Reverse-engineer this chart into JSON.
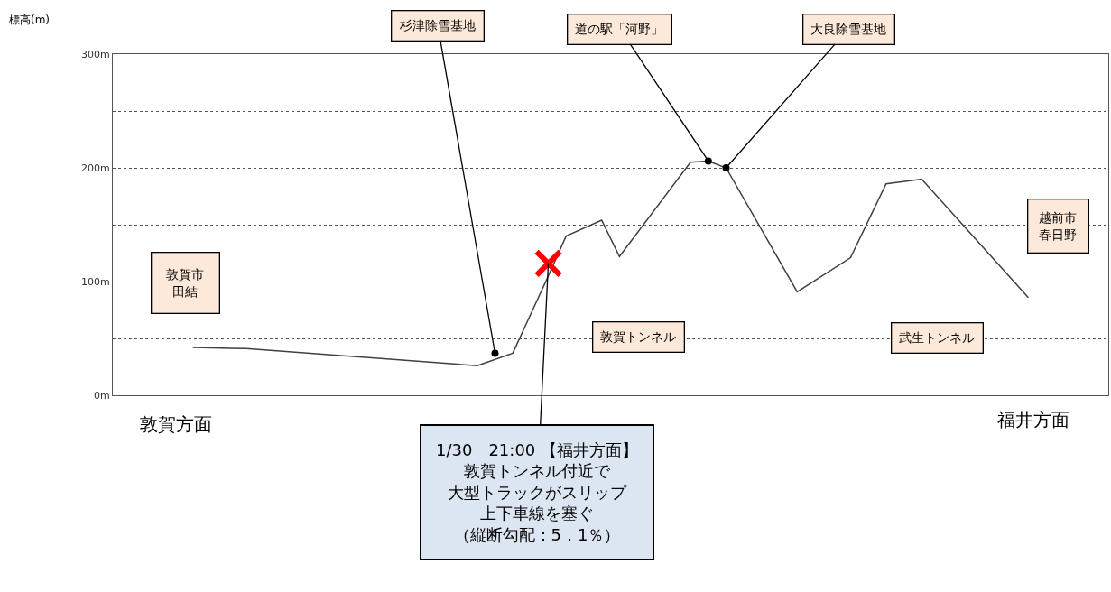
{
  "chart_data": {
    "type": "line",
    "ylabel": "標高(m)",
    "categories": [
      null,
      null,
      null,
      null,
      null,
      null,
      null,
      null,
      null,
      null,
      null,
      null,
      null,
      null,
      null,
      null,
      null,
      null,
      null,
      null,
      null,
      null,
      null,
      null,
      null,
      null,
      null,
      null,
      null,
      null,
      null,
      null,
      null,
      null,
      null,
      null,
      null,
      null,
      null,
      null,
      null,
      null,
      null,
      null,
      null,
      null,
      null,
      null,
      null,
      null,
      null,
      null,
      null,
      null,
      null,
      null
    ],
    "series": [
      {
        "color": "#404040",
        "values": [
          null,
          null,
          null,
          null,
          42,
          null,
          null,
          41,
          null,
          null,
          null,
          null,
          null,
          null,
          null,
          null,
          null,
          null,
          null,
          null,
          26,
          null,
          37,
          null,
          105,
          140,
          null,
          154,
          122,
          null,
          null,
          null,
          205,
          206,
          200,
          null,
          null,
          null,
          91,
          null,
          null,
          121,
          null,
          186,
          null,
          190,
          null,
          null,
          null,
          null,
          null,
          86,
          null,
          null,
          null,
          null
        ]
      },
      {
        "type": "scatter",
        "marker": "circle",
        "color": "#000000",
        "values": [
          null,
          null,
          null,
          null,
          null,
          null,
          null,
          null,
          null,
          null,
          null,
          null,
          null,
          null,
          null,
          null,
          null,
          null,
          null,
          null,
          null,
          37,
          null,
          null,
          null,
          null,
          null,
          null,
          null,
          null,
          null,
          null,
          null,
          206,
          200,
          null,
          null,
          null,
          null,
          null,
          null,
          null,
          null,
          null,
          null,
          null,
          null,
          null,
          null,
          null,
          null,
          null,
          null,
          null,
          null,
          null
        ]
      },
      {
        "type": "scatter",
        "marker": "cross",
        "color": "#ff0000",
        "values": [
          null,
          null,
          null,
          null,
          null,
          null,
          null,
          null,
          null,
          null,
          null,
          null,
          null,
          null,
          null,
          null,
          null,
          null,
          null,
          null,
          null,
          null,
          null,
          null,
          116,
          null,
          null,
          null,
          null,
          null,
          null,
          null,
          null,
          null,
          null,
          null,
          null,
          null,
          null,
          null,
          null,
          null,
          null,
          null,
          null,
          null,
          null,
          null,
          null,
          null,
          null,
          null,
          null,
          null,
          null,
          null
        ]
      }
    ],
    "ylim": [
      0,
      300
    ],
    "yticks": [
      {
        "value": 0,
        "label": "0m"
      },
      {
        "value": 50,
        "label": null
      },
      {
        "value": 100,
        "label": "100m"
      },
      {
        "value": 150,
        "label": null
      },
      {
        "value": 200,
        "label": "200m"
      },
      {
        "value": 250,
        "label": null
      },
      {
        "value": 300,
        "label": "300m"
      }
    ],
    "grid": "y",
    "annotations": [
      "杉津除雪基地",
      "道の駅「河野」",
      "大良除雪基地",
      "敦賀市田結",
      "越前市春日野",
      "敦賀トンネル",
      "武生トンネル",
      "敦賀方面",
      "福井方面",
      "1/30　21:00 【福井方面】敦賀トンネル付近で大型トラックがスリップ上下車線を塞ぐ（縦断勾配：5．1％）"
    ]
  }
}
